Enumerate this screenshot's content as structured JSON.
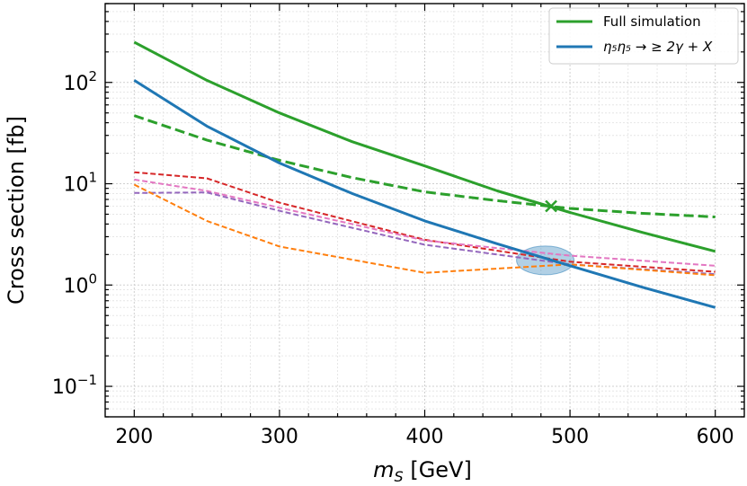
{
  "chart_data": {
    "type": "line",
    "xlabel": "m_S [GeV]",
    "xlabel_parts": {
      "var": "m",
      "sub": "S",
      "unit": " [GeV]"
    },
    "ylabel": "Cross section [fb]",
    "xscale": "linear",
    "yscale": "log",
    "xlim": [
      180,
      620
    ],
    "ylim": [
      0.05,
      600
    ],
    "x_ticks": [
      200,
      300,
      400,
      500,
      600
    ],
    "x_tick_labels": [
      "200",
      "300",
      "400",
      "500",
      "600"
    ],
    "y_ticks": [
      0.1,
      1,
      10,
      100
    ],
    "y_tick_labels": [
      {
        "base": "10",
        "exp": "−1"
      },
      {
        "base": "10",
        "exp": "0"
      },
      {
        "base": "10",
        "exp": "1"
      },
      {
        "base": "10",
        "exp": "2"
      }
    ],
    "grid": true,
    "legend_position": "top-right",
    "legend": [
      {
        "label": "Full simulation",
        "color": "#2ca02c"
      },
      {
        "label": "η5η5 → ≥ 2γ + X",
        "label_text": "η₅η₅ → ≥ 2γ + X",
        "color": "#1f77b4"
      }
    ],
    "series": [
      {
        "name": "Full simulation",
        "color": "#2ca02c",
        "style": "solid",
        "width": 3,
        "x": [
          200,
          250,
          300,
          350,
          400,
          450,
          500,
          550,
          600
        ],
        "y": [
          250,
          105,
          50,
          26,
          15,
          8.5,
          5.2,
          3.3,
          2.15
        ]
      },
      {
        "name": "Full simulation (dashed)",
        "color": "#2ca02c",
        "style": "dashed",
        "width": 3,
        "x": [
          200,
          250,
          300,
          350,
          400,
          450,
          500,
          550,
          600
        ],
        "y": [
          47,
          27,
          17,
          11.5,
          8.3,
          6.8,
          5.7,
          5.1,
          4.7
        ]
      },
      {
        "name": "η5η5 → ≥ 2γ + X",
        "color": "#1f77b4",
        "style": "solid",
        "width": 3,
        "x": [
          200,
          250,
          300,
          350,
          400,
          450,
          500,
          550,
          600
        ],
        "y": [
          105,
          37,
          16,
          8,
          4.3,
          2.55,
          1.55,
          0.95,
          0.6
        ]
      },
      {
        "name": "red dashed",
        "color": "#d62728",
        "style": "dashed",
        "width": 2,
        "x": [
          200,
          250,
          300,
          400,
          500,
          600
        ],
        "y": [
          13,
          11.3,
          6.5,
          2.8,
          1.7,
          1.35
        ]
      },
      {
        "name": "pink dashed",
        "color": "#e377c2",
        "style": "dashed",
        "width": 2,
        "x": [
          200,
          250,
          300,
          400,
          500,
          600
        ],
        "y": [
          11,
          8.5,
          5.8,
          2.75,
          1.95,
          1.55
        ]
      },
      {
        "name": "purple dashed",
        "color": "#9467bd",
        "style": "dashed",
        "width": 2,
        "x": [
          200,
          250,
          300,
          400,
          500,
          600
        ],
        "y": [
          8.1,
          8.2,
          5.4,
          2.5,
          1.6,
          1.28
        ]
      },
      {
        "name": "orange dashed",
        "color": "#ff7f0e",
        "style": "dashed",
        "width": 2,
        "x": [
          200,
          250,
          300,
          400,
          500,
          600
        ],
        "y": [
          9.8,
          4.3,
          2.4,
          1.32,
          1.6,
          1.25
        ]
      }
    ],
    "annotations": [
      {
        "type": "cross-marker",
        "x": 487,
        "y": 6,
        "color": "#2ca02c"
      },
      {
        "type": "ellipse-highlight",
        "x": 483,
        "y": 1.75,
        "color": "#1f77b4"
      }
    ]
  }
}
